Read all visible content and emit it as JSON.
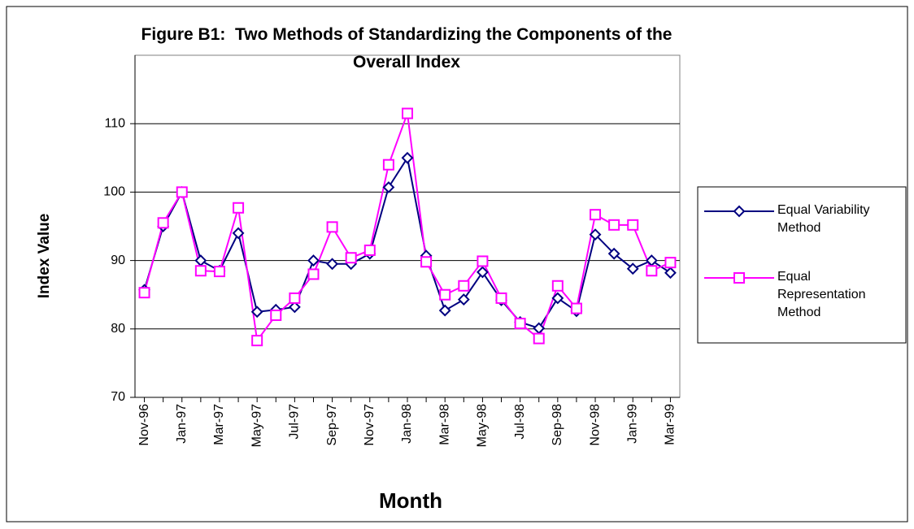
{
  "chart_data": {
    "type": "line",
    "title": "Figure B1:  Two Methods of Standardizing the Components of the Overall Index",
    "x_label": "Month",
    "y_label": "Index Value",
    "categories": [
      "Nov-96",
      null,
      "Jan-97",
      null,
      "Mar-97",
      null,
      "May-97",
      null,
      "Jul-97",
      null,
      "Sep-97",
      null,
      "Nov-97",
      null,
      "Jan-98",
      null,
      "Mar-98",
      null,
      "May-98",
      null,
      "Jul-98",
      null,
      "Sep-98",
      null,
      "Nov-98",
      null,
      "Jan-99",
      null,
      "Mar-99"
    ],
    "series": [
      {
        "name": "Equal Variability Method",
        "color": "#000080",
        "marker": "diamond",
        "values": [
          85.7,
          95,
          100,
          90,
          88.5,
          94,
          82.5,
          82.8,
          83.2,
          90,
          89.5,
          89.5,
          91,
          100.7,
          105,
          90.7,
          82.7,
          84.3,
          88.3,
          84.2,
          81,
          80.1,
          84.5,
          82.6,
          93.8,
          91,
          88.8,
          90,
          88.2
        ]
      },
      {
        "name": "Equal Representation Method",
        "color": "#ff00ff",
        "marker": "square",
        "values": [
          85.3,
          95.5,
          100,
          88.5,
          88.4,
          97.7,
          78.3,
          82,
          84.5,
          88,
          94.9,
          90.4,
          91.5,
          104,
          111.5,
          89.8,
          85,
          86.3,
          89.9,
          84.5,
          80.8,
          78.6,
          86.3,
          83,
          96.7,
          95.2,
          95.2,
          88.5,
          89.7
        ]
      }
    ],
    "ylim": [
      70,
      120
    ],
    "yticks": [
      70,
      80,
      90,
      100,
      110
    ],
    "grid": true,
    "legend": "right"
  }
}
